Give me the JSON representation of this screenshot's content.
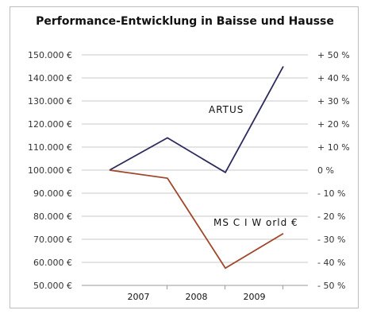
{
  "chart_data": {
    "type": "line",
    "title": "Performance-Entwicklung in Baisse und Hausse",
    "categories": [
      "2007",
      "2008",
      "2009"
    ],
    "x": [
      "2006",
      "2007",
      "2008",
      "2009"
    ],
    "left_axis_ticks": [
      "150.000 €",
      "140.000 €",
      "130.000 €",
      "120.000 €",
      "110.000 €",
      "100.000 €",
      "90.000 €",
      "80.000 €",
      "70.000 €",
      "60.000 €",
      "50.000 €"
    ],
    "right_axis_ticks": [
      "+ 50 %",
      "+ 40 %",
      "+ 30 %",
      "+ 20 %",
      "+ 10 %",
      "0 %",
      "- 10 %",
      "- 20 %",
      "- 30 %",
      "- 40 %",
      "- 50 %"
    ],
    "ylim": [
      50000,
      150000
    ],
    "ylim_right_pct": [
      -50,
      50
    ],
    "grid": true,
    "series": [
      {
        "name": "ARTUS",
        "values": [
          100000,
          114000,
          99000,
          145000
        ],
        "color": "#2b2a5c"
      },
      {
        "name": "MS C I W orld €",
        "values": [
          100000,
          96500,
          57500,
          72500
        ],
        "color": "#a0462a"
      }
    ]
  }
}
